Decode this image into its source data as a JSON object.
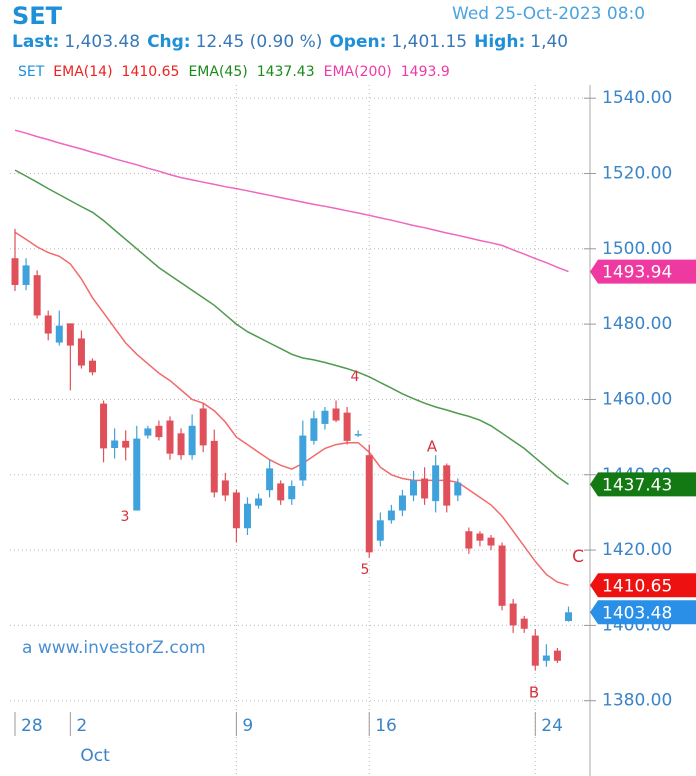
{
  "chart_data": {
    "type": "candlestick",
    "title": "SET",
    "timestamp": "Wed 25-Oct-2023 08:0",
    "info": [
      {
        "label": "Last:",
        "value": "1,403.48"
      },
      {
        "label": "Chg:",
        "value": "12.45 (0.90 %)"
      },
      {
        "label": "Open:",
        "value": "1,401.15"
      },
      {
        "label": "High:",
        "value": "1,40"
      }
    ],
    "legend": [
      {
        "label": "SET",
        "value": null,
        "color": "#1e90d8"
      },
      {
        "label": "EMA(14)",
        "value": "1410.65",
        "color": "#ee2222"
      },
      {
        "label": "EMA(45)",
        "value": "1437.43",
        "color": "#1a8a1a"
      },
      {
        "label": "EMA(200)",
        "value": "1493.9",
        "color": "#ee3aa8"
      }
    ],
    "watermark": "a www.investorZ.com",
    "month_label": "Oct",
    "annotations": [
      "3",
      "4",
      "5",
      "A",
      "B",
      "C"
    ],
    "categories": [
      "28",
      null,
      null,
      null,
      null,
      "2",
      null,
      null,
      null,
      null,
      null,
      null,
      null,
      null,
      null,
      null,
      null,
      null,
      null,
      null,
      "9",
      null,
      null,
      null,
      null,
      null,
      null,
      null,
      null,
      null,
      null,
      null,
      "16",
      null,
      null,
      null,
      null,
      null,
      null,
      null,
      null,
      null,
      null,
      null,
      null,
      null,
      null,
      "24",
      null,
      null,
      null
    ],
    "open": [
      1497.5,
      1490.4,
      1493,
      1482.3,
      1475.1,
      1480.2,
      1476.2,
      1470.3,
      1458.9,
      1447.1,
      1449,
      1430.5,
      1450.4,
      1453,
      1454.4,
      1451,
      1445.2,
      1457.6,
      1449,
      1438.5,
      1435.3,
      1425.8,
      1431.8,
      1435.9,
      1437.7,
      1433.5,
      1438.5,
      1449,
      1453.5,
      1457.6,
      1456.5,
      1450.5,
      1445.2,
      1422.5,
      1427.9,
      1430.5,
      1434.5,
      1439,
      1433,
      1442.5,
      1434.5,
      1425,
      1424.4,
      1423.3,
      1421.2,
      1405.8,
      1401.8,
      1397.3,
      1390.6,
      1393.3,
      1401.15
    ],
    "high": [
      1505.3,
      1497.5,
      1494.3,
      1483.6,
      1483.6,
      1480.2,
      1478.3,
      1470.9,
      1459.7,
      1452.3,
      1451.8,
      1453,
      1453,
      1454.4,
      1455.5,
      1452.3,
      1456,
      1459,
      1452,
      1440.5,
      1436,
      1434,
      1435,
      1444,
      1438.5,
      1438.5,
      1454.4,
      1457,
      1458,
      1459.7,
      1458,
      1451.8,
      1448,
      1430,
      1432,
      1436,
      1441,
      1442,
      1445.2,
      1443,
      1439,
      1426,
      1425,
      1424,
      1422,
      1407,
      1402.5,
      1399,
      1395,
      1394,
      1405
    ],
    "low": [
      1488.8,
      1489,
      1481.5,
      1475.7,
      1474.3,
      1462.4,
      1468.2,
      1466.4,
      1443.3,
      1444.3,
      1443.8,
      1430.5,
      1449.6,
      1449.1,
      1444,
      1444,
      1444,
      1446,
      1434,
      1433,
      1422,
      1424,
      1431,
      1434,
      1432,
      1432,
      1437,
      1448,
      1452,
      1454,
      1448,
      1450,
      1418,
      1421,
      1427,
      1429,
      1433,
      1432,
      1430,
      1430,
      1433,
      1419,
      1421,
      1420,
      1404,
      1398,
      1398,
      1388,
      1389,
      1390,
      1401
    ],
    "close": [
      1490.4,
      1495.6,
      1482.3,
      1477.5,
      1479.6,
      1474.3,
      1469,
      1467.2,
      1447,
      1449.1,
      1447.2,
      1449.6,
      1452.3,
      1450,
      1445.6,
      1445.2,
      1453,
      1447.8,
      1435.3,
      1434.5,
      1425.8,
      1432.3,
      1433.7,
      1441.7,
      1433.2,
      1437,
      1450.4,
      1455,
      1457,
      1454.4,
      1449,
      1450.8,
      1419.4,
      1427.9,
      1430.5,
      1434.5,
      1438.5,
      1433.7,
      1442.5,
      1431.8,
      1437.9,
      1420.4,
      1422.5,
      1421.2,
      1405.2,
      1400,
      1399.1,
      1389.3,
      1392,
      1390.6,
      1403.48
    ],
    "up_color": "#3fa2dc",
    "down_color": "#e0505a",
    "series": [
      {
        "name": "EMA(14)",
        "color": "#f26a6a",
        "tag_color": "#ee1111",
        "values": [
          1504.4,
          1502.5,
          1500.5,
          1499,
          1498,
          1496,
          1492,
          1487,
          1483,
          1479,
          1475,
          1472,
          1469.5,
          1467,
          1465,
          1462.5,
          1460,
          1459,
          1457,
          1454,
          1450,
          1448,
          1446,
          1444,
          1442.5,
          1441.5,
          1443,
          1445,
          1447,
          1448,
          1448.5,
          1448.5,
          1446,
          1442,
          1440,
          1439,
          1438.5,
          1438.5,
          1438.5,
          1438.5,
          1438,
          1436,
          1434,
          1432,
          1429,
          1425,
          1421,
          1417,
          1413.5,
          1411.5,
          1410.65
        ]
      },
      {
        "name": "EMA(45)",
        "color": "#4f9a4f",
        "tag_color": "#137a13",
        "values": [
          1520.9,
          1519.3,
          1517.7,
          1516,
          1514.4,
          1512.8,
          1511.2,
          1509.7,
          1507.5,
          1505,
          1502.5,
          1500,
          1497.5,
          1495,
          1493,
          1491,
          1489,
          1487,
          1485,
          1482.5,
          1480,
          1478,
          1476.5,
          1475,
          1473.5,
          1472,
          1471,
          1470.5,
          1469.8,
          1469,
          1468.2,
          1467.2,
          1466,
          1464.5,
          1463,
          1461.5,
          1460.2,
          1459,
          1458,
          1457.2,
          1456.3,
          1455.5,
          1454.5,
          1453,
          1451,
          1449,
          1447,
          1444.5,
          1442,
          1439.5,
          1437.43
        ]
      },
      {
        "name": "EMA(200)",
        "color": "#f065c0",
        "tag_color": "#ee3aa0",
        "values": [
          1531.5,
          1530.7,
          1529.8,
          1529,
          1528.1,
          1527.3,
          1526.5,
          1525.6,
          1524.8,
          1523.9,
          1523.1,
          1522.3,
          1521.4,
          1520.6,
          1519.7,
          1518.9,
          1518.3,
          1517.7,
          1517.1,
          1516.5,
          1516,
          1515.4,
          1514.8,
          1514.2,
          1513.6,
          1513,
          1512.4,
          1511.8,
          1511.3,
          1510.7,
          1510.1,
          1509.5,
          1508.9,
          1508.2,
          1507.6,
          1506.9,
          1506.2,
          1505.6,
          1504.9,
          1504.2,
          1503.6,
          1502.9,
          1502.2,
          1501.6,
          1500.9,
          1499.7,
          1498.6,
          1497.4,
          1496.3,
          1495.1,
          1493.94
        ]
      }
    ],
    "last_tag_color": "#2a8fe6",
    "ylim": [
      1377,
      1543.5
    ],
    "yticks": [
      {
        "value": 1380,
        "label": "1380.00"
      },
      {
        "value": 1400,
        "label": "1400.00"
      },
      {
        "value": 1420,
        "label": "1420.00"
      },
      {
        "value": 1440,
        "label": "1440.00"
      },
      {
        "value": 1460,
        "label": "1460.00"
      },
      {
        "value": 1480,
        "label": "1480.00"
      },
      {
        "value": 1500,
        "label": "1500.00"
      },
      {
        "value": 1520,
        "label": "1520.00"
      },
      {
        "value": 1540,
        "label": "1540.00"
      }
    ],
    "grid": true
  }
}
